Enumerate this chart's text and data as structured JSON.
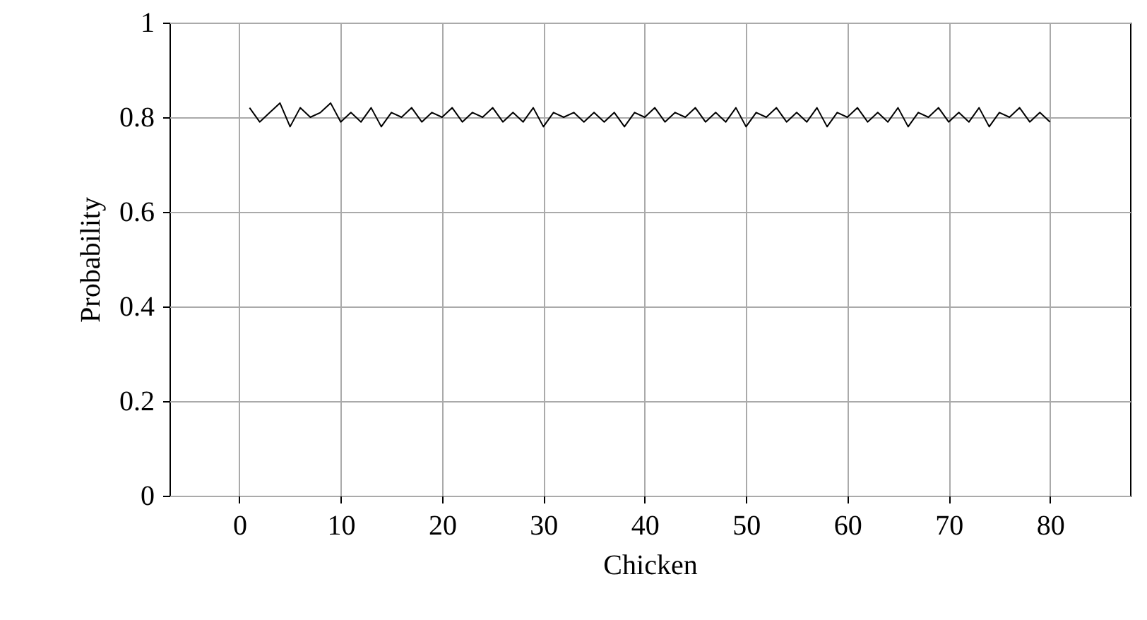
{
  "chart_data": {
    "type": "line",
    "xlabel": "Chicken",
    "ylabel": "Probability",
    "x": [
      1,
      2,
      3,
      4,
      5,
      6,
      7,
      8,
      9,
      10,
      11,
      12,
      13,
      14,
      15,
      16,
      17,
      18,
      19,
      20,
      21,
      22,
      23,
      24,
      25,
      26,
      27,
      28,
      29,
      30,
      31,
      32,
      33,
      34,
      35,
      36,
      37,
      38,
      39,
      40,
      41,
      42,
      43,
      44,
      45,
      46,
      47,
      48,
      49,
      50,
      51,
      52,
      53,
      54,
      55,
      56,
      57,
      58,
      59,
      60,
      61,
      62,
      63,
      64,
      65,
      66,
      67,
      68,
      69,
      70,
      71,
      72,
      73,
      74,
      75,
      76,
      77,
      78,
      79,
      80
    ],
    "series": [
      {
        "color": "#000000",
        "values": [
          0.82,
          0.79,
          0.81,
          0.83,
          0.78,
          0.82,
          0.8,
          0.81,
          0.83,
          0.79,
          0.81,
          0.79,
          0.82,
          0.78,
          0.81,
          0.8,
          0.82,
          0.79,
          0.81,
          0.8,
          0.82,
          0.79,
          0.81,
          0.8,
          0.82,
          0.79,
          0.81,
          0.79,
          0.82,
          0.78,
          0.81,
          0.8,
          0.81,
          0.79,
          0.81,
          0.79,
          0.81,
          0.78,
          0.81,
          0.8,
          0.82,
          0.79,
          0.81,
          0.8,
          0.82,
          0.79,
          0.81,
          0.79,
          0.82,
          0.78,
          0.81,
          0.8,
          0.82,
          0.79,
          0.81,
          0.79,
          0.82,
          0.78,
          0.81,
          0.8,
          0.82,
          0.79,
          0.81,
          0.79,
          0.82,
          0.78,
          0.81,
          0.8,
          0.82,
          0.79,
          0.81,
          0.79,
          0.82,
          0.78,
          0.81,
          0.8,
          0.82,
          0.79,
          0.81,
          0.79
        ]
      }
    ],
    "xlim": [
      -6.9,
      87.9
    ],
    "xticks": [
      0,
      10,
      20,
      30,
      40,
      50,
      60,
      70,
      80
    ],
    "ylim": [
      0,
      1
    ],
    "yticks": [
      0,
      0.2,
      0.4,
      0.6,
      0.8,
      1
    ],
    "grid": true,
    "marker": "none",
    "line_style": "solid"
  }
}
